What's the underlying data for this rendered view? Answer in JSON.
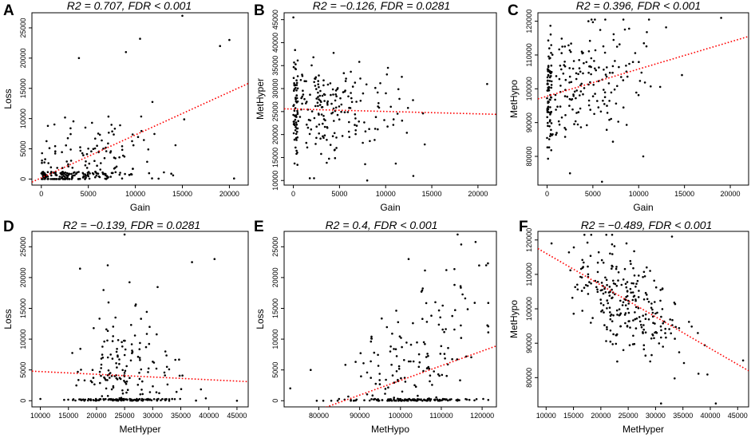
{
  "chart_data": [
    {
      "type": "scatter",
      "panel": "A",
      "title": "R2 = 0.707, FDR < 0.001",
      "xlabel": "Gain",
      "ylabel": "Loss",
      "xlim": [
        -1000,
        22000
      ],
      "ylim": [
        -1000,
        27500
      ],
      "xticks": [
        0,
        5000,
        10000,
        15000,
        20000
      ],
      "yticks": [
        0,
        5000,
        10000,
        15000,
        20000,
        25000
      ],
      "fit": {
        "x": [
          -1000,
          22000
        ],
        "y": [
          -500,
          15800
        ]
      },
      "n_points": 260,
      "highlight_points": [
        [
          15000,
          27000
        ],
        [
          20000,
          23000
        ],
        [
          10500,
          23200
        ],
        [
          20500,
          100
        ],
        [
          4000,
          20000
        ],
        [
          9000,
          21000
        ],
        [
          19000,
          22000
        ]
      ]
    },
    {
      "type": "scatter",
      "panel": "B",
      "title": "R2 = −0.126, FDR = 0.0281",
      "xlabel": "Gain",
      "ylabel": "MetHyper",
      "xlim": [
        -1000,
        22000
      ],
      "ylim": [
        9000,
        46500
      ],
      "xticks": [
        0,
        5000,
        10000,
        15000,
        20000
      ],
      "yticks": [
        10000,
        15000,
        20000,
        25000,
        30000,
        35000,
        40000,
        45000
      ],
      "fit": {
        "x": [
          -1000,
          22000
        ],
        "y": [
          25600,
          24400
        ]
      },
      "n_points": 260,
      "highlight_points": [
        [
          0,
          45500
        ],
        [
          21000,
          31000
        ],
        [
          8000,
          10000
        ],
        [
          13000,
          11000
        ]
      ]
    },
    {
      "type": "scatter",
      "panel": "C",
      "title": "R2 = 0.396, FDR < 0.001",
      "xlabel": "Gain",
      "ylabel": "MetHypo",
      "xlim": [
        -1000,
        22000
      ],
      "ylim": [
        71500,
        122500
      ],
      "xticks": [
        0,
        5000,
        10000,
        15000,
        20000
      ],
      "yticks": [
        80000,
        90000,
        100000,
        110000,
        120000
      ],
      "fit": {
        "x": [
          -1000,
          22000
        ],
        "y": [
          97000,
          115500
        ]
      },
      "n_points": 260,
      "highlight_points": [
        [
          19000,
          121000
        ],
        [
          6000,
          72500
        ],
        [
          10500,
          80000
        ],
        [
          2500,
          75000
        ]
      ]
    },
    {
      "type": "scatter",
      "panel": "D",
      "title": "R2 = −0.139, FDR = 0.0281",
      "xlabel": "MetHyper",
      "ylabel": "Loss",
      "xlim": [
        8500,
        47000
      ],
      "ylim": [
        -1000,
        27500
      ],
      "xticks": [
        10000,
        15000,
        20000,
        25000,
        30000,
        35000,
        40000,
        45000
      ],
      "yticks": [
        0,
        5000,
        10000,
        15000,
        20000,
        25000
      ],
      "fit": {
        "x": [
          8500,
          47000
        ],
        "y": [
          4800,
          3100
        ]
      },
      "n_points": 260,
      "highlight_points": [
        [
          25000,
          27000
        ],
        [
          41000,
          23000
        ],
        [
          37000,
          22500
        ],
        [
          22000,
          22000
        ],
        [
          45000,
          0
        ]
      ]
    },
    {
      "type": "scatter",
      "panel": "E",
      "title": "R2 = 0.4, FDR < 0.001",
      "xlabel": "MetHypo",
      "ylabel": "Loss",
      "xlim": [
        71500,
        123500
      ],
      "ylim": [
        -1000,
        27500
      ],
      "xticks": [
        80000,
        90000,
        100000,
        110000,
        120000
      ],
      "yticks": [
        0,
        5000,
        10000,
        15000,
        20000,
        25000
      ],
      "fit": {
        "x": [
          71500,
          123500
        ],
        "y": [
          -3500,
          8900
        ]
      },
      "n_points": 260,
      "highlight_points": [
        [
          114000,
          27000
        ],
        [
          121000,
          22000
        ],
        [
          102000,
          23000
        ],
        [
          73000,
          2000
        ],
        [
          78000,
          5000
        ]
      ]
    },
    {
      "type": "scatter",
      "panel": "F",
      "title": "R2 = −0.489, FDR < 0.001",
      "xlabel": "MetHyper",
      "ylabel": "MetHypo",
      "xlim": [
        8500,
        47000
      ],
      "ylim": [
        71500,
        122500
      ],
      "xticks": [
        10000,
        15000,
        20000,
        25000,
        30000,
        35000,
        40000,
        45000
      ],
      "yticks": [
        80000,
        90000,
        100000,
        110000,
        120000
      ],
      "fit": {
        "x": [
          8500,
          47000
        ],
        "y": [
          117500,
          82000
        ]
      },
      "n_points": 260,
      "highlight_points": [
        [
          21000,
          121500
        ],
        [
          33000,
          121000
        ],
        [
          11000,
          119000
        ],
        [
          31000,
          72500
        ],
        [
          46000,
          85000
        ],
        [
          41000,
          72500
        ]
      ]
    }
  ]
}
